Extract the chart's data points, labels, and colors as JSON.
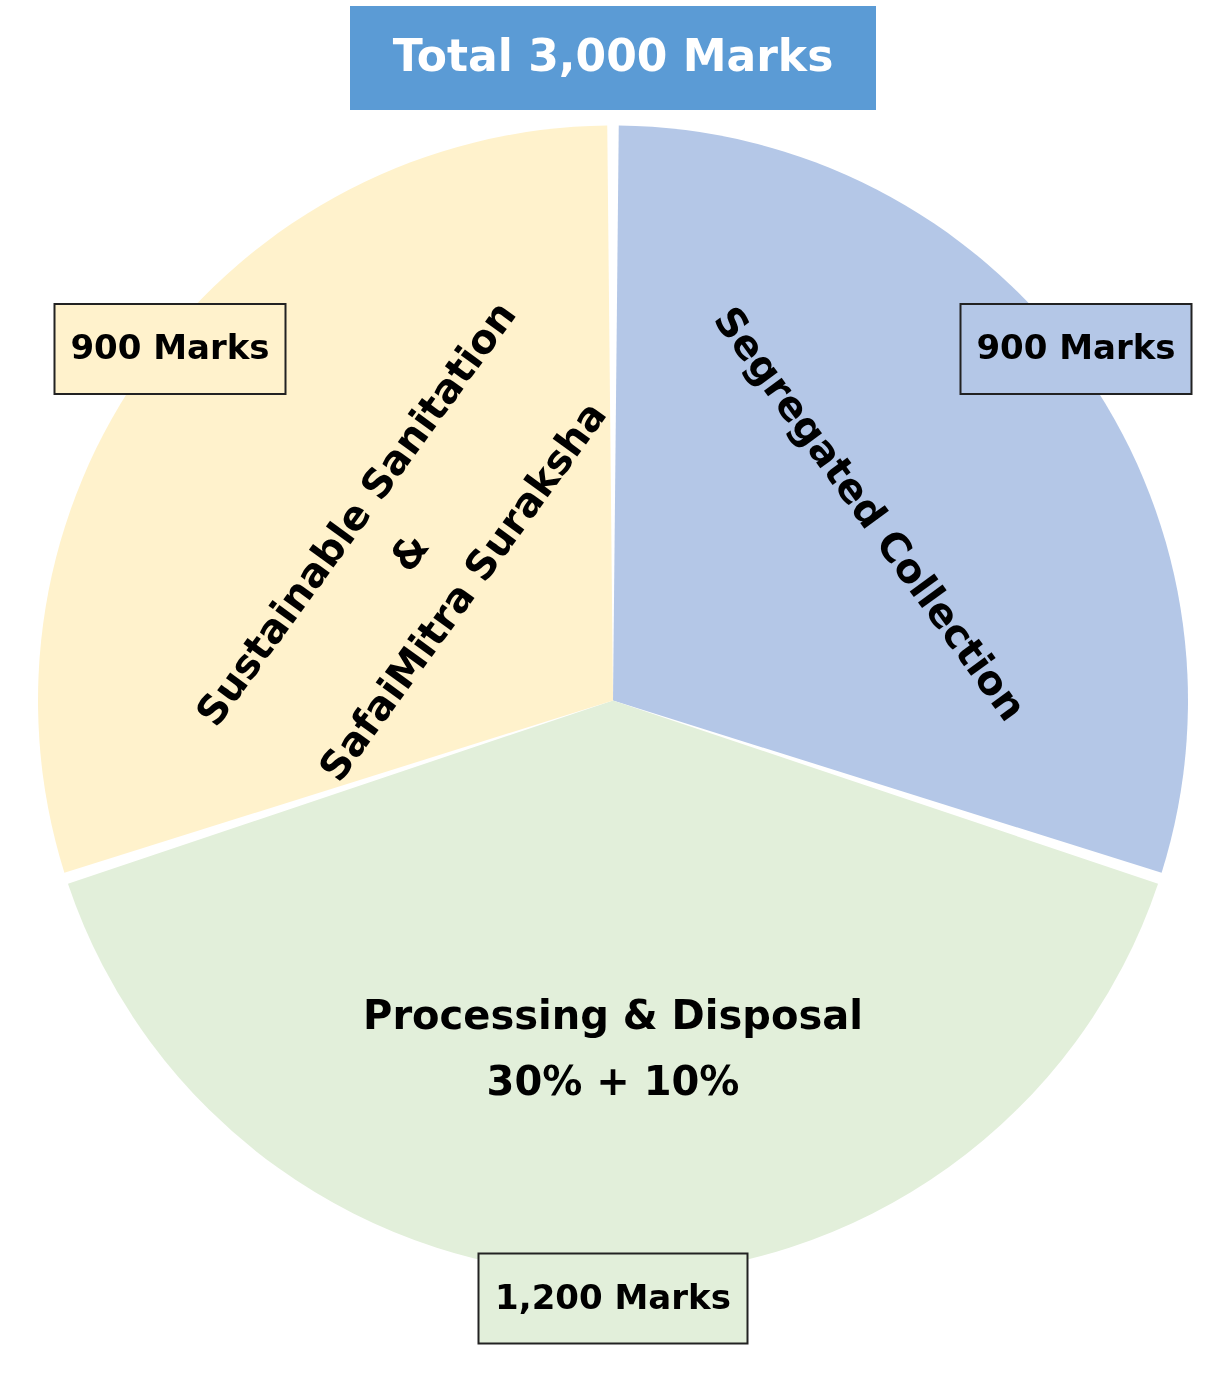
{
  "chart_data": {
    "type": "pie",
    "title": "Total 3,000 Marks",
    "categories": [
      "Segregated Collection",
      "Processing & Disposal\n30% + 10%",
      "Sustainable Sanitation\n&\nSafaiMitra Suraksha"
    ],
    "values": [
      900,
      1200,
      900
    ],
    "colors": [
      "#b4c7e7",
      "#e2efda",
      "#fff2cc"
    ],
    "value_labels": [
      "900 Marks",
      "1,200 Marks",
      "900 Marks"
    ]
  }
}
